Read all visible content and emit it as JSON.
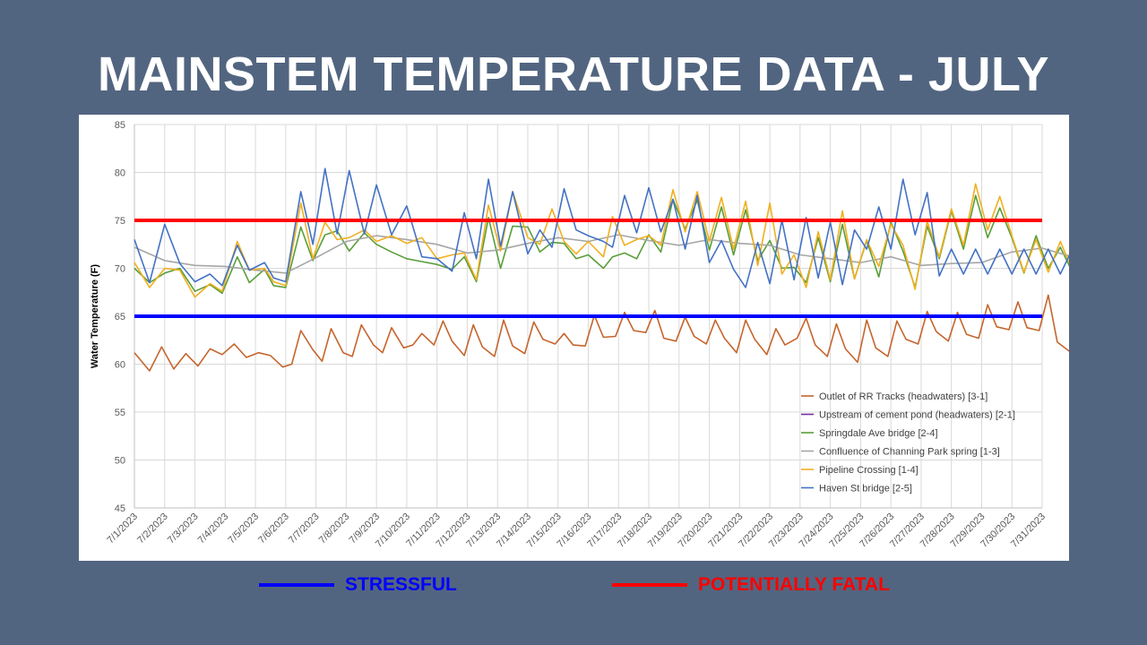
{
  "slide": {
    "title": "MAINSTEM TEMPERATURE DATA - JULY"
  },
  "key_legend": [
    {
      "label": "STRESSFUL",
      "color": "#0000ff"
    },
    {
      "label": "POTENTIALLY FATAL",
      "color": "#ff0000"
    }
  ],
  "chart_data": {
    "type": "line",
    "title": "",
    "ylabel": "Water Temperature (F)",
    "xlabel": "",
    "ylim": [
      45,
      85
    ],
    "yticks": [
      45,
      50,
      55,
      60,
      65,
      70,
      75,
      80,
      85
    ],
    "x_labels": [
      "7/1/2023",
      "7/2/2023",
      "7/3/2023",
      "7/4/2023",
      "7/5/2023",
      "7/6/2023",
      "7/7/2023",
      "7/8/2023",
      "7/9/2023",
      "7/10/2023",
      "7/11/2023",
      "7/12/2023",
      "7/13/2023",
      "7/14/2023",
      "7/15/2023",
      "7/16/2023",
      "7/17/2023",
      "7/18/2023",
      "7/19/2023",
      "7/20/2023",
      "7/21/2023",
      "7/22/2023",
      "7/23/2023",
      "7/24/2023",
      "7/25/2023",
      "7/26/2023",
      "7/27/2023",
      "7/28/2023",
      "7/29/2023",
      "7/30/2023",
      "7/31/2023"
    ],
    "x_unit": "day index (0 = 7/1/2023)",
    "thresholds": [
      {
        "label": "STRESSFUL",
        "value": 65,
        "color": "#0000ff"
      },
      {
        "label": "POTENTIALLY FATAL",
        "value": 75,
        "color": "#ff0000"
      }
    ],
    "legend_position": "bottom-right",
    "series": [
      {
        "name": "Outlet of RR Tracks (headwaters) [3-1]",
        "color": "#c5652d",
        "x": [
          0,
          0.5,
          0.9,
          1.3,
          1.7,
          2.1,
          2.5,
          2.9,
          3.3,
          3.7,
          4.1,
          4.5,
          4.9,
          5.2,
          5.5,
          5.9,
          6.2,
          6.5,
          6.9,
          7.2,
          7.5,
          7.9,
          8.2,
          8.5,
          8.9,
          9.2,
          9.5,
          9.9,
          10.2,
          10.5,
          10.9,
          11.2,
          11.5,
          11.9,
          12.2,
          12.5,
          12.9,
          13.2,
          13.5,
          13.9,
          14.2,
          14.5,
          14.9,
          15.2,
          15.5,
          15.9,
          16.2,
          16.5,
          16.9,
          17.2,
          17.5,
          17.9,
          18.2,
          18.5,
          18.9,
          19.2,
          19.5,
          19.9,
          20.2,
          20.5,
          20.9,
          21.2,
          21.5,
          21.9,
          22.2,
          22.5,
          22.9,
          23.2,
          23.5,
          23.9,
          24.2,
          24.5,
          24.9,
          25.2,
          25.5,
          25.9,
          26.2,
          26.5,
          26.9,
          27.2,
          27.5,
          27.9,
          28.2,
          28.5,
          28.9,
          29.2,
          29.5,
          29.9,
          30.2,
          30.5,
          31
        ],
        "values": [
          61.2,
          59.3,
          61.8,
          59.5,
          61.1,
          59.8,
          61.6,
          61.0,
          62.1,
          60.7,
          61.2,
          60.9,
          59.7,
          60.0,
          63.5,
          61.5,
          60.3,
          63.7,
          61.2,
          60.8,
          64.1,
          62.0,
          61.2,
          63.8,
          61.7,
          62.0,
          63.2,
          62.0,
          64.5,
          62.4,
          60.9,
          64.1,
          61.8,
          60.8,
          64.6,
          61.9,
          61.1,
          64.4,
          62.6,
          62.1,
          63.2,
          62.0,
          61.9,
          65.1,
          62.8,
          62.9,
          65.4,
          63.5,
          63.3,
          65.6,
          62.7,
          62.4,
          64.9,
          62.9,
          62.1,
          64.6,
          62.7,
          61.2,
          64.6,
          62.6,
          61.0,
          63.7,
          62.0,
          62.7,
          64.8,
          62.0,
          60.8,
          64.2,
          61.6,
          60.2,
          64.6,
          61.7,
          60.8,
          64.5,
          62.6,
          62.1,
          65.5,
          63.4,
          62.4,
          65.4,
          63.1,
          62.7,
          66.2,
          63.9,
          63.6,
          66.5,
          63.8,
          63.5,
          67.2,
          62.3,
          61.1
        ]
      },
      {
        "name": "Upstream of cement pond (headwaters) [2-1]",
        "color": "#7030a0",
        "x": [],
        "values": []
      },
      {
        "name": "Springdale Ave bridge [2-4]",
        "color": "#5a9e3a",
        "x": [
          0,
          0.5,
          1.0,
          1.5,
          2.0,
          2.5,
          2.9,
          3.4,
          3.8,
          4.3,
          4.6,
          5.0,
          5.5,
          5.9,
          6.3,
          6.7,
          7.1,
          7.6,
          8.0,
          8.5,
          9.0,
          9.5,
          10.0,
          10.5,
          10.9,
          11.3,
          11.7,
          12.1,
          12.5,
          13.0,
          13.4,
          13.8,
          14.2,
          14.6,
          15.0,
          15.5,
          15.8,
          16.2,
          16.6,
          17.0,
          17.4,
          17.8,
          18.2,
          18.6,
          19.0,
          19.4,
          19.8,
          20.2,
          20.6,
          21.0,
          21.4,
          21.8,
          22.2,
          22.6,
          23.0,
          23.4,
          23.8,
          24.2,
          24.6,
          25.0,
          25.4,
          25.8,
          26.2,
          26.6,
          27.0,
          27.4,
          27.8,
          28.2,
          28.6,
          29.0,
          29.4,
          29.8,
          30.2,
          30.6,
          31
        ],
        "values": [
          70.0,
          68.5,
          69.5,
          70.0,
          67.6,
          68.3,
          67.4,
          71.2,
          68.5,
          69.9,
          68.2,
          68.0,
          74.3,
          70.8,
          73.5,
          73.9,
          71.8,
          73.7,
          72.5,
          71.7,
          71.0,
          70.7,
          70.4,
          69.9,
          71.2,
          68.6,
          75.3,
          70.0,
          74.4,
          74.3,
          71.7,
          72.7,
          72.6,
          71.0,
          71.4,
          70.0,
          71.2,
          71.6,
          71.0,
          73.5,
          71.7,
          77.2,
          74.1,
          77.1,
          71.9,
          76.4,
          71.4,
          76.1,
          70.8,
          72.9,
          70.0,
          70.1,
          68.5,
          73.2,
          68.6,
          74.6,
          68.9,
          72.9,
          69.1,
          74.8,
          71.8,
          68.0,
          74.4,
          71.0,
          76.0,
          72.0,
          77.6,
          73.2,
          76.3,
          73.2,
          69.5,
          73.4,
          70.0,
          72.2,
          69.6
        ]
      },
      {
        "name": "Confluence of Channing Park spring [1-3]",
        "color": "#a6a6a6",
        "x": [
          0,
          1,
          2,
          3,
          4,
          5,
          6,
          7,
          8,
          9,
          10,
          11,
          12,
          13,
          14,
          15,
          16,
          17,
          18,
          19,
          20,
          21,
          22,
          23,
          24,
          25,
          26,
          27,
          28,
          29,
          30,
          31
        ],
        "values": [
          72.2,
          70.8,
          70.3,
          70.2,
          69.8,
          69.5,
          71.1,
          72.8,
          73.4,
          73.0,
          72.5,
          71.6,
          71.9,
          72.6,
          73.2,
          72.8,
          73.5,
          72.9,
          72.4,
          73.0,
          72.6,
          72.4,
          71.4,
          71.0,
          70.6,
          71.2,
          70.3,
          70.5,
          70.6,
          71.7,
          72.1,
          71.2
        ]
      },
      {
        "name": "Pipeline Crossing [1-4]",
        "color": "#f0b020",
        "x": [
          0,
          0.5,
          1.0,
          1.5,
          2.0,
          2.5,
          2.9,
          3.4,
          3.8,
          4.3,
          4.6,
          5.0,
          5.5,
          5.9,
          6.3,
          6.7,
          7.1,
          7.6,
          8.0,
          8.5,
          9.0,
          9.5,
          10.0,
          10.5,
          10.9,
          11.3,
          11.7,
          12.1,
          12.5,
          13.0,
          13.4,
          13.8,
          14.2,
          14.6,
          15.0,
          15.5,
          15.8,
          16.2,
          16.6,
          17.0,
          17.4,
          17.8,
          18.2,
          18.6,
          19.0,
          19.4,
          19.8,
          20.2,
          20.6,
          21.0,
          21.4,
          21.8,
          22.2,
          22.6,
          23.0,
          23.4,
          23.8,
          24.2,
          24.6,
          25.0,
          25.4,
          25.8,
          26.2,
          26.6,
          27.0,
          27.4,
          27.8,
          28.2,
          28.6,
          29.0,
          29.4,
          29.8,
          30.2,
          30.6,
          31
        ],
        "values": [
          70.6,
          68.0,
          70.0,
          69.8,
          67.0,
          68.4,
          67.6,
          72.8,
          69.8,
          70.0,
          68.6,
          68.2,
          76.8,
          71.0,
          74.8,
          73.0,
          73.2,
          74.0,
          72.8,
          73.4,
          72.6,
          73.2,
          71.0,
          71.4,
          71.6,
          68.8,
          76.6,
          71.8,
          78.0,
          73.2,
          72.5,
          76.2,
          72.8,
          71.5,
          72.8,
          71.2,
          75.4,
          72.4,
          73.0,
          73.4,
          72.4,
          78.2,
          73.8,
          78.0,
          72.8,
          77.4,
          72.0,
          77.0,
          70.3,
          76.8,
          69.4,
          71.4,
          68.0,
          73.8,
          68.8,
          76.0,
          68.9,
          73.0,
          70.2,
          74.6,
          72.4,
          67.8,
          74.9,
          71.2,
          76.2,
          72.4,
          78.8,
          74.0,
          77.5,
          73.4,
          69.6,
          73.0,
          69.6,
          72.8,
          69.8
        ]
      },
      {
        "name": "Haven St bridge [2-5]",
        "color": "#4472c4",
        "x": [
          0,
          0.5,
          1.0,
          1.5,
          2.0,
          2.5,
          2.9,
          3.4,
          3.8,
          4.3,
          4.6,
          5.0,
          5.5,
          5.9,
          6.3,
          6.7,
          7.1,
          7.6,
          8.0,
          8.5,
          9.0,
          9.5,
          10.0,
          10.5,
          10.9,
          11.3,
          11.7,
          12.1,
          12.5,
          13.0,
          13.4,
          13.8,
          14.2,
          14.6,
          15.0,
          15.5,
          15.8,
          16.2,
          16.6,
          17.0,
          17.4,
          17.8,
          18.2,
          18.6,
          19.0,
          19.4,
          19.8,
          20.2,
          20.6,
          21.0,
          21.4,
          21.8,
          22.2,
          22.6,
          23.0,
          23.4,
          23.8,
          24.2,
          24.6,
          25.0,
          25.4,
          25.8,
          26.2,
          26.6,
          27.0,
          27.4,
          27.8,
          28.2,
          28.6,
          29.0,
          29.4,
          29.8,
          30.2,
          30.6,
          31
        ],
        "values": [
          73.0,
          68.5,
          74.6,
          70.5,
          68.6,
          69.4,
          68.2,
          72.4,
          69.8,
          70.6,
          69.0,
          68.6,
          78.0,
          72.5,
          80.4,
          73.6,
          80.2,
          73.6,
          78.7,
          73.5,
          76.5,
          71.2,
          71.0,
          69.7,
          75.8,
          71.0,
          79.3,
          72.3,
          78.0,
          71.5,
          74.0,
          72.2,
          78.3,
          74.0,
          73.4,
          72.8,
          72.2,
          77.6,
          73.7,
          78.4,
          73.8,
          77.2,
          72.0,
          77.6,
          70.6,
          72.9,
          69.9,
          68.0,
          72.7,
          68.4,
          75.0,
          68.8,
          75.3,
          69.0,
          74.8,
          68.3,
          74.0,
          72.0,
          76.4,
          72.0,
          79.3,
          73.5,
          77.9,
          69.2,
          72.0,
          69.4,
          72.0,
          69.4,
          72.0,
          69.4,
          72.0,
          69.4,
          72.0,
          69.4,
          72.0
        ]
      }
    ]
  }
}
